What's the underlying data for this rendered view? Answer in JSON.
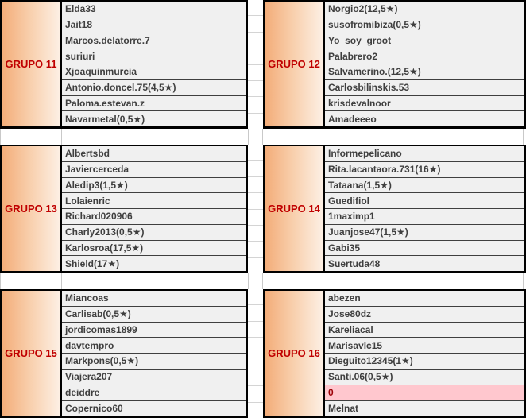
{
  "groups": [
    {
      "label": "GRUPO 11",
      "members": [
        {
          "text": "Elda33"
        },
        {
          "text": "Jait18"
        },
        {
          "text": "Marcos.delatorre.7"
        },
        {
          "text": "suriuri"
        },
        {
          "text": "Xjoaquinmurcia"
        },
        {
          "text": "Antonio.doncel.75(4,5★)"
        },
        {
          "text": "Paloma.estevan.z"
        },
        {
          "text": "Navarmetal(0,5★)"
        }
      ]
    },
    {
      "label": "GRUPO 12",
      "members": [
        {
          "text": "Norgio2(12,5★)"
        },
        {
          "text": "susofromibiza(0,5★)"
        },
        {
          "text": "Yo_soy_groot"
        },
        {
          "text": "Palabrero2"
        },
        {
          "text": "Salvamerino.(12,5★)"
        },
        {
          "text": "Carlosbilinskis.53"
        },
        {
          "text": "krisdevalnoor"
        },
        {
          "text": "Amadeeeo"
        }
      ]
    },
    {
      "label": "GRUPO 13",
      "members": [
        {
          "text": "Albertsbd"
        },
        {
          "text": "Javiercerceda"
        },
        {
          "text": "Aledip3(1,5★)"
        },
        {
          "text": "Lolaienric"
        },
        {
          "text": "Richard020906"
        },
        {
          "text": "Charly2013(0,5★)"
        },
        {
          "text": "Karlosroa(17,5★)"
        },
        {
          "text": "Shield(17★)"
        }
      ]
    },
    {
      "label": "GRUPO 14",
      "members": [
        {
          "text": "Informepelicano"
        },
        {
          "text": "Rita.lacantaora.731(16★)"
        },
        {
          "text": "Tataana(1,5★)"
        },
        {
          "text": "Guedifiol"
        },
        {
          "text": "1maximp1"
        },
        {
          "text": "Juanjose47(1,5★)"
        },
        {
          "text": "Gabi35"
        },
        {
          "text": "Suertuda48"
        }
      ]
    },
    {
      "label": "GRUPO 15",
      "members": [
        {
          "text": "Miancoas"
        },
        {
          "text": "Carlisab(0,5★)"
        },
        {
          "text": "jordicomas1899"
        },
        {
          "text": "davtempro"
        },
        {
          "text": "Markpons(0,5★)"
        },
        {
          "text": "Viajera207"
        },
        {
          "text": "deiddre"
        },
        {
          "text": "Copernico60"
        }
      ]
    },
    {
      "label": "GRUPO 16",
      "members": [
        {
          "text": "abezen"
        },
        {
          "text": "Jose80dz"
        },
        {
          "text": "Kareliacal"
        },
        {
          "text": "Marisavlc15"
        },
        {
          "text": "Dieguito12345(1★)"
        },
        {
          "text": "Santi.06(0,5★)"
        },
        {
          "text": "0",
          "status": "bad"
        },
        {
          "text": "Melnat"
        }
      ]
    }
  ],
  "colors": {
    "label_gradient_start": "#f3ac78",
    "label_gradient_end": "#fdf0e5",
    "label_text": "#c00000",
    "member_bg": "#f0f0f0",
    "member_text": "#3f3f3f",
    "bad_bg": "#ffc7ce",
    "bad_text": "#9c0006",
    "block_border": "#000000",
    "gridline": "#d4d4d4"
  }
}
